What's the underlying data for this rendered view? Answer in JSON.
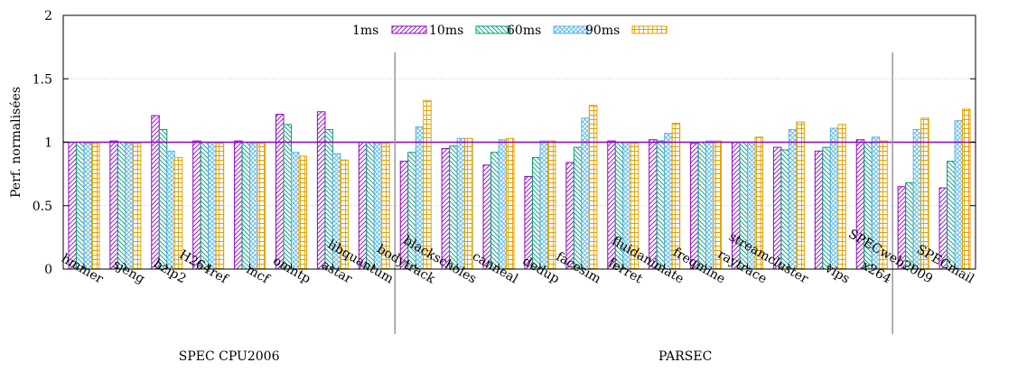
{
  "chart_data": {
    "type": "bar",
    "ylabel": "Perf. normalisées",
    "ylim": [
      0,
      2
    ],
    "yticks": [
      0,
      0.5,
      1,
      1.5,
      2
    ],
    "ytick_labels": [
      "0",
      "0.5",
      "1",
      "1.5",
      "2"
    ],
    "grid": "horizontal dotted",
    "reference_line": 1,
    "legend_position": "top-center",
    "categories": [
      "hmmer",
      "sjeng",
      "bzip2",
      "H264ref",
      "mcf",
      "omntp",
      "astar",
      "libquantum",
      "bodytrack",
      "blackscholes",
      "canneal",
      "dedup",
      "facesim",
      "ferret",
      "fluidanimate",
      "freqmine",
      "raytrace",
      "streamcluster",
      "vips",
      "x264",
      "SPECweb2009",
      "SPECmail"
    ],
    "groups": [
      {
        "label": "SPEC CPU2006",
        "start": 0,
        "end": 7
      },
      {
        "label": "PARSEC",
        "start": 8,
        "end": 21
      }
    ],
    "separators_after": [
      7,
      19
    ],
    "series": [
      {
        "name": "1ms",
        "color": "#9400D3",
        "pattern": "diag",
        "values": [
          1.0,
          1.01,
          1.21,
          1.01,
          1.01,
          1.22,
          1.24,
          1.0,
          0.85,
          0.95,
          0.82,
          0.73,
          0.84,
          1.01,
          1.02,
          0.99,
          1.0,
          0.96,
          0.93,
          1.02,
          0.65,
          0.64
        ]
      },
      {
        "name": "10ms",
        "color": "#009E73",
        "pattern": "anti",
        "values": [
          1.0,
          1.0,
          1.1,
          1.0,
          1.0,
          1.14,
          1.1,
          1.0,
          0.92,
          0.97,
          0.92,
          0.88,
          0.96,
          1.0,
          1.01,
          1.0,
          1.0,
          0.94,
          0.96,
          1.0,
          0.68,
          0.85
        ]
      },
      {
        "name": "60ms",
        "color": "#56B4E9",
        "pattern": "cross",
        "values": [
          0.99,
          0.99,
          0.93,
          1.0,
          0.99,
          0.92,
          0.91,
          0.99,
          1.12,
          1.03,
          1.02,
          1.01,
          1.19,
          1.0,
          1.07,
          1.01,
          1.0,
          1.1,
          1.11,
          1.04,
          1.1,
          1.17
        ]
      },
      {
        "name": "90ms",
        "color": "#E69F00",
        "pattern": "grid",
        "values": [
          0.99,
          0.99,
          0.88,
          0.99,
          0.99,
          0.89,
          0.86,
          0.99,
          1.33,
          1.03,
          1.03,
          1.01,
          1.29,
          0.99,
          1.15,
          1.01,
          1.04,
          1.16,
          1.14,
          1.01,
          1.19,
          1.26
        ]
      }
    ]
  },
  "colors": {
    "reference_line": "#9400D3",
    "separator": "#999999",
    "gridline": "#c8c8c8"
  }
}
